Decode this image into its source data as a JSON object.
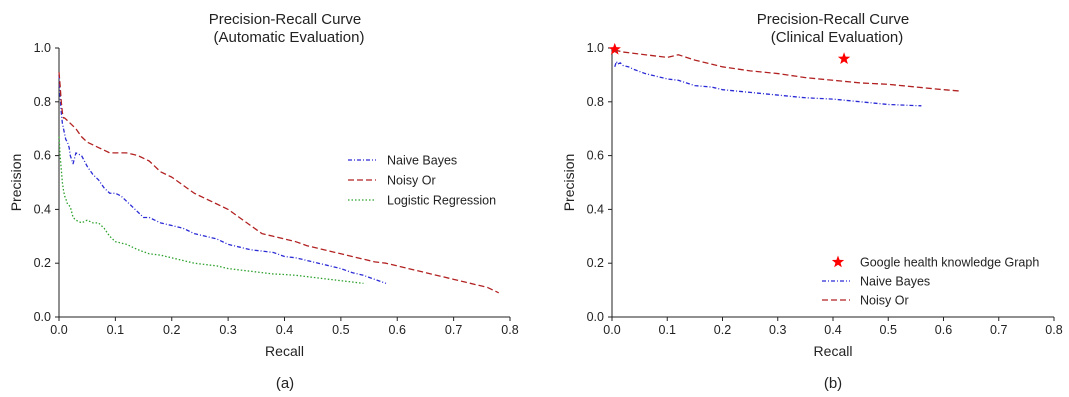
{
  "chart_data": [
    {
      "type": "line",
      "title": "Precision-Recall Curve",
      "subtitle": "(Automatic Evaluation)",
      "xlabel": "Recall",
      "ylabel": "Precision",
      "caption": "(a)",
      "xlim": [
        0,
        0.8
      ],
      "ylim": [
        0,
        1.0
      ],
      "xticks": [
        "0.0",
        "0.1",
        "0.2",
        "0.3",
        "0.4",
        "0.5",
        "0.6",
        "0.7",
        "0.8"
      ],
      "yticks": [
        "0.0",
        "0.2",
        "0.4",
        "0.6",
        "0.8",
        "1.0"
      ],
      "grid": false,
      "legend_position": "right",
      "series": [
        {
          "name": "Naive Bayes",
          "color": "#2b2bd6",
          "style": "dashdot",
          "x": [
            0.0,
            0.002,
            0.004,
            0.006,
            0.008,
            0.01,
            0.012,
            0.015,
            0.018,
            0.02,
            0.025,
            0.03,
            0.04,
            0.05,
            0.06,
            0.07,
            0.08,
            0.09,
            0.1,
            0.11,
            0.12,
            0.13,
            0.14,
            0.15,
            0.16,
            0.17,
            0.18,
            0.2,
            0.22,
            0.24,
            0.26,
            0.28,
            0.3,
            0.32,
            0.34,
            0.36,
            0.38,
            0.4,
            0.42,
            0.44,
            0.46,
            0.48,
            0.5,
            0.52,
            0.54,
            0.56,
            0.58
          ],
          "y": [
            0.9,
            0.82,
            0.76,
            0.72,
            0.7,
            0.68,
            0.66,
            0.65,
            0.63,
            0.6,
            0.57,
            0.61,
            0.6,
            0.56,
            0.53,
            0.51,
            0.48,
            0.46,
            0.46,
            0.45,
            0.43,
            0.41,
            0.39,
            0.37,
            0.37,
            0.36,
            0.35,
            0.34,
            0.33,
            0.31,
            0.3,
            0.29,
            0.27,
            0.26,
            0.25,
            0.245,
            0.24,
            0.225,
            0.22,
            0.21,
            0.2,
            0.19,
            0.18,
            0.165,
            0.155,
            0.14,
            0.125
          ]
        },
        {
          "name": "Noisy Or",
          "color": "#b22222",
          "style": "dashed",
          "x": [
            0.0,
            0.002,
            0.004,
            0.006,
            0.008,
            0.01,
            0.015,
            0.02,
            0.03,
            0.04,
            0.05,
            0.06,
            0.07,
            0.08,
            0.09,
            0.1,
            0.12,
            0.14,
            0.16,
            0.18,
            0.2,
            0.22,
            0.24,
            0.26,
            0.28,
            0.3,
            0.32,
            0.34,
            0.36,
            0.38,
            0.4,
            0.42,
            0.44,
            0.46,
            0.48,
            0.5,
            0.52,
            0.54,
            0.56,
            0.58,
            0.6,
            0.62,
            0.64,
            0.66,
            0.68,
            0.7,
            0.72,
            0.74,
            0.76,
            0.78
          ],
          "y": [
            0.91,
            0.86,
            0.8,
            0.76,
            0.74,
            0.74,
            0.73,
            0.72,
            0.7,
            0.67,
            0.65,
            0.64,
            0.63,
            0.62,
            0.61,
            0.61,
            0.61,
            0.6,
            0.58,
            0.54,
            0.52,
            0.49,
            0.46,
            0.44,
            0.42,
            0.4,
            0.37,
            0.34,
            0.31,
            0.3,
            0.29,
            0.28,
            0.265,
            0.255,
            0.245,
            0.235,
            0.225,
            0.215,
            0.205,
            0.2,
            0.19,
            0.18,
            0.17,
            0.16,
            0.15,
            0.14,
            0.13,
            0.12,
            0.11,
            0.09
          ]
        },
        {
          "name": "Logistic Regression",
          "color": "#2ca02c",
          "style": "dotted",
          "x": [
            0.0,
            0.002,
            0.004,
            0.006,
            0.008,
            0.01,
            0.012,
            0.015,
            0.02,
            0.025,
            0.03,
            0.04,
            0.05,
            0.06,
            0.07,
            0.08,
            0.09,
            0.1,
            0.12,
            0.14,
            0.16,
            0.18,
            0.2,
            0.22,
            0.24,
            0.26,
            0.28,
            0.3,
            0.32,
            0.34,
            0.36,
            0.38,
            0.4,
            0.42,
            0.44,
            0.46,
            0.48,
            0.5,
            0.52,
            0.54
          ],
          "y": [
            0.67,
            0.6,
            0.55,
            0.5,
            0.47,
            0.45,
            0.44,
            0.42,
            0.41,
            0.37,
            0.36,
            0.35,
            0.36,
            0.35,
            0.35,
            0.33,
            0.3,
            0.28,
            0.27,
            0.25,
            0.235,
            0.23,
            0.22,
            0.21,
            0.2,
            0.195,
            0.19,
            0.18,
            0.175,
            0.17,
            0.165,
            0.16,
            0.158,
            0.155,
            0.15,
            0.145,
            0.14,
            0.135,
            0.13,
            0.125
          ]
        }
      ]
    },
    {
      "type": "line",
      "title": "Precision-Recall Curve",
      "subtitle": "(Clinical Evaluation)",
      "xlabel": "Recall",
      "ylabel": "Precision",
      "caption": "(b)",
      "xlim": [
        0,
        0.8
      ],
      "ylim": [
        0,
        1.0
      ],
      "xticks": [
        "0.0",
        "0.1",
        "0.2",
        "0.3",
        "0.4",
        "0.5",
        "0.6",
        "0.7",
        "0.8"
      ],
      "yticks": [
        "0.0",
        "0.2",
        "0.4",
        "0.6",
        "0.8",
        "1.0"
      ],
      "grid": false,
      "legend_position": "bottom-right",
      "series": [
        {
          "name": "Google health knowledge Graph",
          "color": "#ff0000",
          "style": "star-marker",
          "x": [
            0.005,
            0.42
          ],
          "y": [
            0.995,
            0.96
          ]
        },
        {
          "name": "Naive Bayes",
          "color": "#2b2bd6",
          "style": "dashdot",
          "x": [
            0.005,
            0.008,
            0.01,
            0.015,
            0.02,
            0.03,
            0.04,
            0.06,
            0.08,
            0.1,
            0.12,
            0.15,
            0.18,
            0.2,
            0.25,
            0.3,
            0.35,
            0.4,
            0.45,
            0.5,
            0.56
          ],
          "y": [
            0.93,
            0.95,
            0.94,
            0.945,
            0.935,
            0.93,
            0.92,
            0.905,
            0.895,
            0.885,
            0.88,
            0.86,
            0.855,
            0.845,
            0.835,
            0.825,
            0.815,
            0.81,
            0.8,
            0.79,
            0.785
          ]
        },
        {
          "name": "Noisy Or",
          "color": "#b22222",
          "style": "dashed",
          "x": [
            0.005,
            0.01,
            0.02,
            0.04,
            0.06,
            0.08,
            0.1,
            0.12,
            0.15,
            0.18,
            0.2,
            0.25,
            0.3,
            0.35,
            0.4,
            0.45,
            0.5,
            0.55,
            0.6,
            0.63
          ],
          "y": [
            0.985,
            0.99,
            0.985,
            0.98,
            0.975,
            0.97,
            0.965,
            0.975,
            0.955,
            0.94,
            0.93,
            0.915,
            0.905,
            0.89,
            0.88,
            0.87,
            0.865,
            0.855,
            0.845,
            0.84
          ]
        }
      ]
    }
  ]
}
